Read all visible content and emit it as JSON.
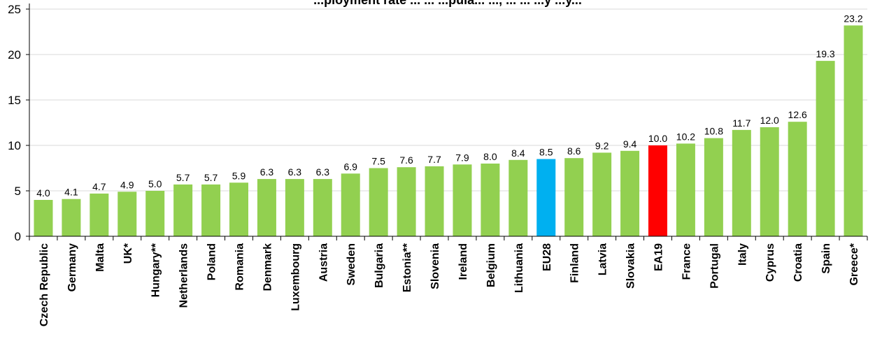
{
  "chart_data": {
    "type": "bar",
    "title": "...ployment rate ... ... ...pula... ..., ... ... ...y ...y...",
    "xlabel": "",
    "ylabel": "",
    "ylim": [
      0,
      25
    ],
    "yticks": [
      0,
      5,
      10,
      15,
      20,
      25
    ],
    "grid": true,
    "legend": "none",
    "categories": [
      "Czech Republic",
      "Germany",
      "Malta",
      "UK*",
      "Hungary**",
      "Netherlands",
      "Poland",
      "Romania",
      "Denmark",
      "Luxembourg",
      "Austria",
      "Sweden",
      "Bulgaria",
      "Estonia**",
      "Slovenia",
      "Ireland",
      "Belgium",
      "Lithuania",
      "EU28",
      "Finland",
      "Latvia",
      "Slovakia",
      "EA19",
      "France",
      "Portugal",
      "Italy",
      "Cyprus",
      "Croatia",
      "Spain",
      "Greece*"
    ],
    "values": [
      4.0,
      4.1,
      4.7,
      4.9,
      5.0,
      5.7,
      5.7,
      5.9,
      6.3,
      6.3,
      6.3,
      6.9,
      7.5,
      7.6,
      7.7,
      7.9,
      8.0,
      8.4,
      8.5,
      8.6,
      9.2,
      9.4,
      10.0,
      10.2,
      10.8,
      11.7,
      12.0,
      12.6,
      19.3,
      23.2
    ],
    "value_labels": [
      "4.0",
      "4.1",
      "4.7",
      "4.9",
      "5.0",
      "5.7",
      "5.7",
      "5.9",
      "6.3",
      "6.3",
      "6.3",
      "6.9",
      "7.5",
      "7.6",
      "7.7",
      "7.9",
      "8.0",
      "8.4",
      "8.5",
      "8.6",
      "9.2",
      "9.4",
      "10.0",
      "10.2",
      "10.8",
      "11.7",
      "12.0",
      "12.6",
      "19.3",
      "23.2"
    ],
    "colors": {
      "default": "#92d050",
      "EU28": "#00b0f0",
      "EA19": "#ff0000",
      "grid": "#d9d9d9",
      "axis": "#000000"
    }
  }
}
